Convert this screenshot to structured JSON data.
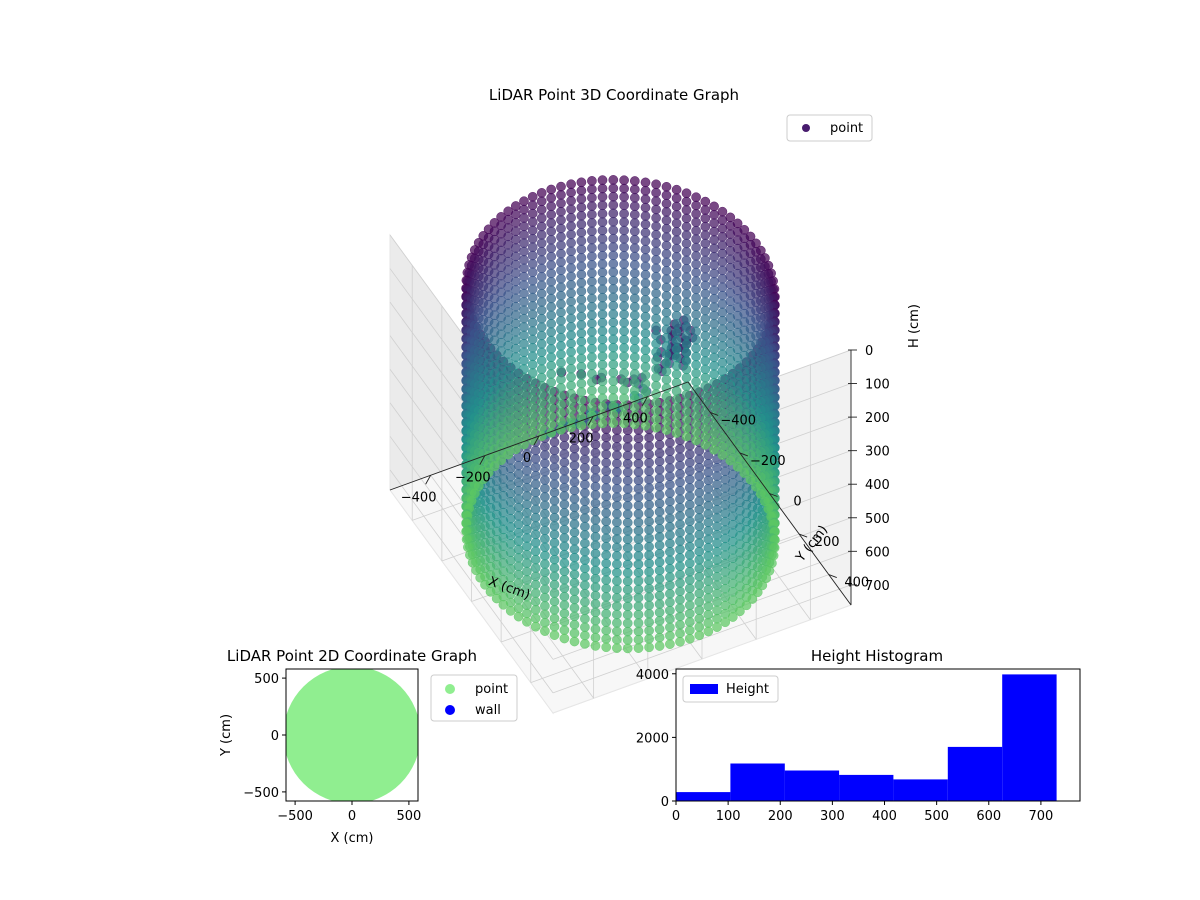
{
  "chart_data": [
    {
      "type": "scatter",
      "projection": "3d",
      "title": "LiDAR Point 3D Coordinate Graph",
      "xlabel": "X (cm)",
      "ylabel": "Y (cm)",
      "zlabel": "H (cm)",
      "xlim": [
        -550,
        550
      ],
      "ylim": [
        -550,
        550
      ],
      "zlim": [
        760,
        0
      ],
      "z_inverted": true,
      "xticks": [
        -400,
        -200,
        0,
        200,
        400
      ],
      "yticks": [
        -400,
        -200,
        0,
        200,
        400
      ],
      "zticks": [
        0,
        100,
        200,
        300,
        400,
        500,
        600,
        700
      ],
      "grid": true,
      "legend": {
        "position": "top-right",
        "entries": [
          "point"
        ]
      },
      "colormap": [
        "#440154",
        "#3b528b",
        "#21918c",
        "#5ec962"
      ],
      "series": [
        {
          "name": "point",
          "color": "#481c6e",
          "wall": {
            "shape": "cylinder",
            "radius": 500,
            "h_min": 0,
            "h_max": 730,
            "angle_step_deg": 4,
            "h_step": 25
          },
          "interior_points": [
            [
              -300,
              150,
              60
            ],
            [
              -260,
              210,
              40
            ],
            [
              -220,
              240,
              50
            ],
            [
              -180,
              200,
              80
            ],
            [
              -140,
              260,
              60
            ],
            [
              -100,
              230,
              100
            ],
            [
              -60,
              200,
              120
            ],
            [
              -20,
              180,
              140
            ],
            [
              20,
              220,
              100
            ],
            [
              60,
              170,
              150
            ],
            [
              100,
              150,
              120
            ],
            [
              140,
              190,
              80
            ],
            [
              -200,
              100,
              260
            ],
            [
              -160,
              60,
              300
            ],
            [
              -120,
              140,
              220
            ],
            [
              -80,
              90,
              260
            ],
            [
              -40,
              60,
              300
            ],
            [
              0,
              120,
              200
            ],
            [
              40,
              80,
              250
            ],
            [
              80,
              30,
              300
            ],
            [
              120,
              110,
              180
            ],
            [
              160,
              60,
              160
            ],
            [
              200,
              120,
              120
            ],
            [
              -250,
              -50,
              380
            ],
            [
              -200,
              -100,
              420
            ],
            [
              -150,
              -20,
              360
            ],
            [
              -100,
              -150,
              450
            ],
            [
              -50,
              -80,
              400
            ],
            [
              0,
              -200,
              480
            ],
            [
              50,
              -120,
              430
            ],
            [
              100,
              -60,
              380
            ],
            [
              150,
              -180,
              460
            ],
            [
              -240,
              30,
              320
            ],
            [
              -180,
              -60,
              380
            ],
            [
              220,
              40,
              140
            ]
          ],
          "cluster": {
            "x": 120,
            "y": 150,
            "h": 100,
            "count": 28
          }
        }
      ]
    },
    {
      "type": "scatter",
      "title": "LiDAR Point 2D Coordinate Graph",
      "xlabel": "X (cm)",
      "ylabel": "Y (cm)",
      "xlim": [
        -580,
        580
      ],
      "ylim": [
        -580,
        580
      ],
      "xticks": [
        -500,
        0,
        500
      ],
      "yticks": [
        -500,
        0,
        500
      ],
      "legend": {
        "position": "outside-right",
        "entries": [
          "point",
          "wall"
        ]
      },
      "series": [
        {
          "name": "point",
          "color": "#90ee90",
          "shape": "disc",
          "center": [
            0,
            0
          ],
          "radius": 550
        },
        {
          "name": "wall",
          "color": "#0000ff",
          "points": []
        }
      ]
    },
    {
      "type": "bar",
      "subtype": "histogram",
      "title": "Height Histogram",
      "xlabel": "",
      "ylabel": "",
      "xlim": [
        0,
        775
      ],
      "ylim": [
        0,
        4150
      ],
      "xticks": [
        0,
        100,
        200,
        300,
        400,
        500,
        600,
        700
      ],
      "yticks": [
        0,
        2000,
        4000
      ],
      "legend": {
        "position": "top-left",
        "entries": [
          "Height"
        ]
      },
      "bin_edges": [
        0,
        104.3,
        208.6,
        312.9,
        417.1,
        521.4,
        625.7,
        730
      ],
      "series": [
        {
          "name": "Height",
          "color": "#0000ff",
          "values": [
            280,
            1180,
            960,
            820,
            680,
            1700,
            3980
          ]
        }
      ]
    }
  ]
}
